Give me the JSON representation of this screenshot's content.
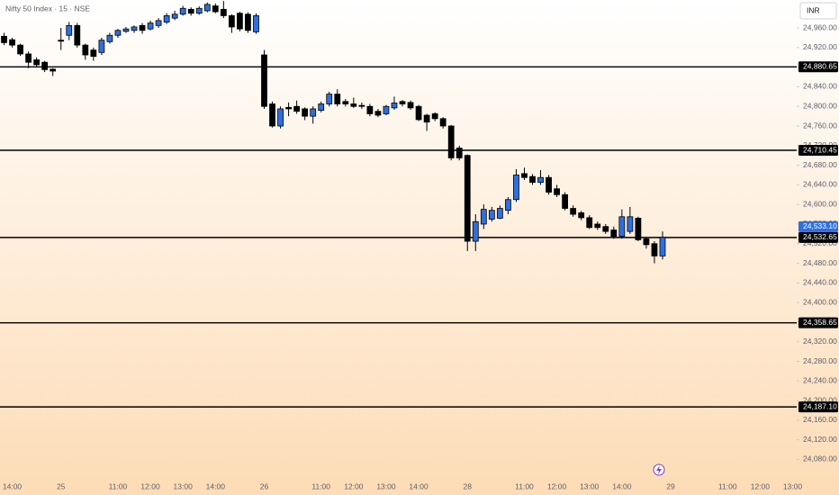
{
  "chart_data": {
    "type": "candlestick",
    "title": "Nifty 50 Index · 15 · NSE",
    "currency": "INR",
    "up_color": "#2f6fdf",
    "down_color": "#000000",
    "categories": [
      null,
      "14:00",
      null,
      null,
      null,
      null,
      null,
      "25",
      null,
      null,
      null,
      null,
      null,
      null,
      "11:00",
      null,
      null,
      null,
      "12:00",
      null,
      null,
      null,
      "13:00",
      null,
      null,
      null,
      "14:00",
      null,
      null,
      null,
      null,
      null,
      "26",
      null,
      null,
      null,
      null,
      null,
      null,
      "11:00",
      null,
      null,
      null,
      "12:00",
      null,
      null,
      null,
      "13:00",
      null,
      null,
      null,
      "14:00",
      null,
      null,
      null,
      null,
      null,
      "28",
      null,
      null,
      null,
      null,
      null,
      null,
      "11:00",
      null,
      null,
      null,
      "12:00",
      null,
      null,
      null,
      "13:00",
      null,
      null,
      null,
      "14:00",
      null,
      null,
      null,
      null,
      null,
      "29",
      null,
      null,
      null,
      null,
      null,
      null,
      "11:00",
      null,
      null,
      null,
      "12:00",
      null,
      null,
      null,
      "13:00"
    ],
    "open": [
      24943,
      24936,
      24925,
      24907,
      24895,
      24890,
      24876,
      24935,
      24945,
      24965,
      24925,
      24915,
      24910,
      24932,
      24945,
      24953,
      24955,
      24965,
      24958,
      24965,
      24972,
      24980,
      24988,
      24998,
      24990,
      24995,
      25005,
      24998,
      24985,
      24990,
      24988,
      24952,
      24905,
      24805,
      24760,
      24798,
      24800,
      24795,
      24780,
      24792,
      24805,
      24825,
      24810,
      24805,
      24802,
      24800,
      24790,
      24785,
      24797,
      24810,
      24808,
      24800,
      24782,
      24785,
      24775,
      24760,
      24715,
      24700,
      24525,
      24560,
      24570,
      24572,
      24588,
      24610,
      24663,
      24657,
      24645,
      24655,
      24632,
      24620,
      24592,
      24583,
      24573,
      24560,
      24555,
      24548,
      24535,
      24545,
      24572,
      24530,
      24520,
      24495,
      null,
      null,
      null,
      null,
      null,
      null,
      null,
      null,
      null,
      null,
      null,
      null,
      null,
      null,
      null,
      null
    ],
    "high": [
      24950,
      24940,
      24928,
      24912,
      24900,
      24893,
      24878,
      24960,
      24972,
      24970,
      24928,
      24920,
      24940,
      24950,
      24958,
      24962,
      24965,
      24970,
      24975,
      24980,
      24990,
      24995,
      25005,
      25002,
      25004,
      25012,
      25010,
      25015,
      24988,
      24993,
      24992,
      24990,
      24915,
      24810,
      24800,
      24808,
      24812,
      24798,
      24800,
      24810,
      24830,
      24835,
      24815,
      24818,
      24808,
      24805,
      24795,
      24803,
      24820,
      24813,
      24812,
      24803,
      24785,
      24788,
      24778,
      24762,
      24720,
      24702,
      24580,
      24600,
      24595,
      24598,
      24615,
      24672,
      24675,
      24662,
      24670,
      24660,
      24640,
      24625,
      24598,
      24587,
      24578,
      24565,
      24560,
      24555,
      24590,
      24595,
      24575,
      24533,
      24525,
      24545,
      null,
      null,
      null,
      null,
      null,
      null,
      null,
      null,
      null,
      null,
      null,
      null,
      null,
      null,
      null,
      null
    ],
    "low": [
      24925,
      24920,
      24903,
      24878,
      24880,
      24870,
      24862,
      24915,
      24935,
      24920,
      24895,
      24893,
      24905,
      24928,
      24940,
      24950,
      24950,
      24948,
      24955,
      24960,
      24968,
      24976,
      24985,
      24985,
      24987,
      24992,
      24990,
      24980,
      24950,
      24953,
      24950,
      24948,
      24795,
      24757,
      24755,
      24780,
      24785,
      24772,
      24765,
      24788,
      24800,
      24800,
      24800,
      24797,
      24795,
      24780,
      24778,
      24782,
      24793,
      24800,
      24793,
      24770,
      24750,
      24770,
      24755,
      24690,
      24690,
      24505,
      24505,
      24550,
      24565,
      24570,
      24580,
      24605,
      24650,
      24640,
      24640,
      24620,
      24615,
      24588,
      24575,
      24568,
      24550,
      24548,
      24540,
      24530,
      24530,
      24540,
      24525,
      24510,
      24480,
      24488,
      null,
      null,
      null,
      null,
      null,
      null,
      null,
      null,
      null,
      null,
      null,
      null,
      null,
      null,
      null,
      null
    ],
    "close": [
      24930,
      24925,
      24907,
      24890,
      24885,
      24875,
      24872,
      24933,
      24965,
      24925,
      24905,
      24902,
      24935,
      24945,
      24955,
      24958,
      24962,
      24955,
      24970,
      24975,
      24985,
      24988,
      25000,
      24990,
      25000,
      25008,
      24993,
      24985,
      24962,
      24958,
      24955,
      24985,
      24800,
      24760,
      24795,
      24795,
      24790,
      24780,
      24795,
      24805,
      24825,
      24805,
      24805,
      24800,
      24800,
      24785,
      24782,
      24800,
      24807,
      24805,
      24797,
      24773,
      24768,
      24775,
      24760,
      24695,
      24695,
      24525,
      24565,
      24590,
      24588,
      24592,
      24610,
      24660,
      24655,
      24645,
      24655,
      24625,
      24620,
      24592,
      24580,
      24573,
      24553,
      24553,
      24545,
      24535,
      24575,
      24575,
      24528,
      24518,
      24495,
      24533.1,
      null,
      null,
      null,
      null,
      null,
      null,
      null,
      null,
      null,
      null,
      null,
      null,
      null,
      null,
      null,
      null
    ],
    "ylim": [
      24035,
      25017
    ],
    "yticks": [
      {
        "value": 24080,
        "label": "24,080.00"
      },
      {
        "value": 24120,
        "label": "24,120.00"
      },
      {
        "value": 24160,
        "label": "24,160.00"
      },
      {
        "value": 24200,
        "label": "24,200.00"
      },
      {
        "value": 24240,
        "label": "24,240.00"
      },
      {
        "value": 24280,
        "label": "24,280.00"
      },
      {
        "value": 24320,
        "label": "24,320.00"
      },
      {
        "value": 24360,
        "label": "24,360.00"
      },
      {
        "value": 24400,
        "label": "24,400.00"
      },
      {
        "value": 24440,
        "label": "24,440.00"
      },
      {
        "value": 24480,
        "label": "24,480.00"
      },
      {
        "value": 24520,
        "label": "24,520.00"
      },
      {
        "value": 24560,
        "label": "24,560.00"
      },
      {
        "value": 24600,
        "label": "24,600.00"
      },
      {
        "value": 24640,
        "label": "24,640.00"
      },
      {
        "value": 24680,
        "label": "24,680.00"
      },
      {
        "value": 24720,
        "label": "24,720.00"
      },
      {
        "value": 24760,
        "label": "24,760.00"
      },
      {
        "value": 24800,
        "label": "24,800.00"
      },
      {
        "value": 24840,
        "label": "24,840.00"
      },
      {
        "value": 24880,
        "label": "24,880.00"
      },
      {
        "value": 24920,
        "label": "24,920.00"
      },
      {
        "value": 24960,
        "label": "24,960.00"
      }
    ],
    "levels": [
      {
        "value": 24880.65,
        "label": "24,880.65"
      },
      {
        "value": 24710.45,
        "label": "24,710.45"
      },
      {
        "value": 24532.65,
        "label": "24,532.65"
      },
      {
        "value": 24358.65,
        "label": "24,358.65"
      },
      {
        "value": 24187.1,
        "label": "24,187.10"
      }
    ],
    "last_price": {
      "value": 24533.1,
      "label": "24,533.10"
    }
  }
}
